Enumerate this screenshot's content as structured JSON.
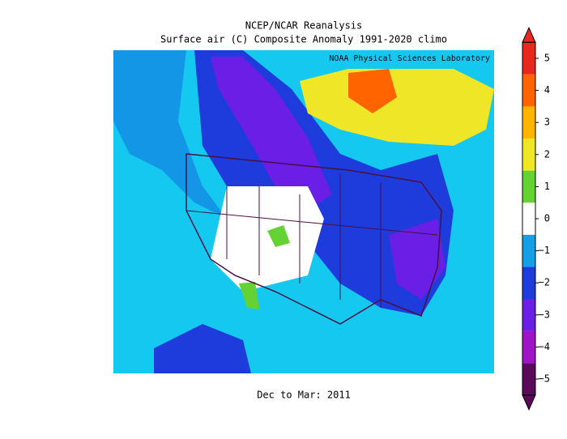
{
  "header": {
    "title": "NCEP/NCAR Reanalysis",
    "subtitle": "Surface air (C) Composite Anomaly 1991-2020 climo",
    "credit": "NOAA Physical Sciences Laboratory"
  },
  "footer": "Dec to Mar: 2011",
  "colorbar": {
    "ticks": [
      {
        "value": -5,
        "label": "−5"
      },
      {
        "value": -4,
        "label": "−4"
      },
      {
        "value": -3,
        "label": "−3"
      },
      {
        "value": -2,
        "label": "−2"
      },
      {
        "value": -1,
        "label": "−1"
      },
      0,
      1,
      2,
      3,
      4,
      5
    ],
    "colors": [
      "#5a0a5a",
      "#a014c8",
      "#6a1ee6",
      "#1e3cdc",
      "#14a0e6",
      "#ffffff",
      "#64d232",
      "#f0e628",
      "#ffb400",
      "#ff6400",
      "#e6281e"
    ]
  }
}
